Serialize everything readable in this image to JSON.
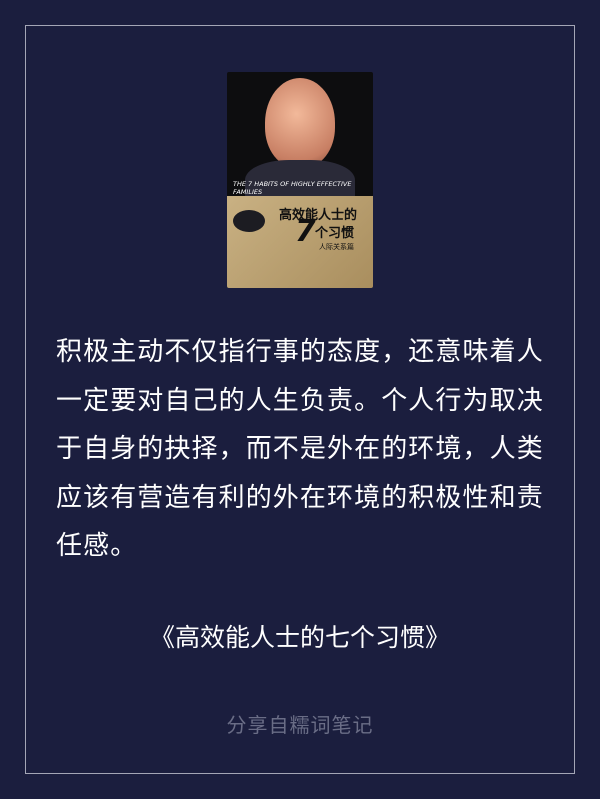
{
  "cover": {
    "title_en": "THE 7 HABITS OF HIGHLY EFFECTIVE FAMILIES",
    "title_cn": "高效能人士的",
    "number": "7",
    "title_cn_2": "个习惯",
    "tag": "人际关系篇"
  },
  "quote": "积极主动不仅指行事的态度，还意味着人一定要对自己的人生负责。个人行为取决于自身的抉择，而不是外在的环境，人类应该有营造有利的外在环境的积极性和责任感。",
  "book_title": "《高效能人士的七个习惯》",
  "footer": "分享自糯词笔记"
}
